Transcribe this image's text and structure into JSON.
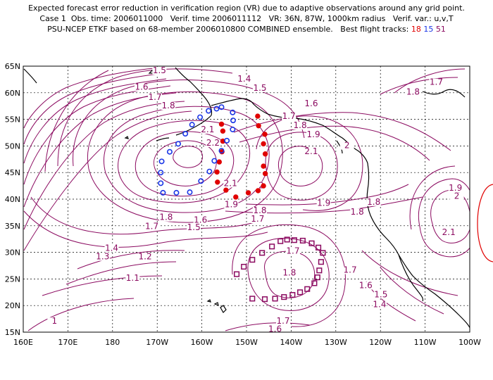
{
  "title": {
    "line1": "Expected forecast error reduction in verification region (VR) due to adaptive observations around any grid point.",
    "line2": "Case 1  Obs. time: 2006011000   Verif. time 2006011112   VR: 36N, 87W, 1000km radius   Verif. var.: u,v,T",
    "line3_prefix": "PSU-NCEP ETKF based on 68-member 2006010800 COMBINED ensemble.   Best flight tracks: ",
    "track1": "18",
    "track2": "15",
    "track3": "51"
  },
  "axes": {
    "x_ticks": [
      "160E",
      "170E",
      "180",
      "170W",
      "160W",
      "150W",
      "140W",
      "130W",
      "120W",
      "110W",
      "100W"
    ],
    "y_ticks": [
      "15N",
      "20N",
      "25N",
      "30N",
      "35N",
      "40N",
      "45N",
      "50N",
      "55N",
      "60N",
      "65N"
    ]
  },
  "contour_labels": [
    {
      "text": "1.5",
      "lon": -169.5,
      "lat": 63.8
    },
    {
      "text": "1.4",
      "lon": -150.5,
      "lat": 62.2
    },
    {
      "text": "1.5",
      "lon": -147,
      "lat": 60.5
    },
    {
      "text": "1.6",
      "lon": -173.5,
      "lat": 60.7
    },
    {
      "text": "1.7",
      "lon": -170.5,
      "lat": 58.8
    },
    {
      "text": "1.8",
      "lon": -167.5,
      "lat": 57.2
    },
    {
      "text": "1.6",
      "lon": -135.5,
      "lat": 57.6
    },
    {
      "text": "1.7",
      "lon": -140.5,
      "lat": 55.2
    },
    {
      "text": "1.8",
      "lon": -138,
      "lat": 53.5
    },
    {
      "text": "1.9",
      "lon": -135,
      "lat": 51.8
    },
    {
      "text": "2",
      "lon": -127.5,
      "lat": 49.7
    },
    {
      "text": "2.1",
      "lon": -135.5,
      "lat": 48.6
    },
    {
      "text": "2.1",
      "lon": -158.7,
      "lat": 52.7
    },
    {
      "text": "2.2",
      "lon": -157.5,
      "lat": 50.2
    },
    {
      "text": "2.1",
      "lon": -153.6,
      "lat": 42.6
    },
    {
      "text": "2",
      "lon": -146.7,
      "lat": 42.2
    },
    {
      "text": "1.9",
      "lon": -153.4,
      "lat": 38.6
    },
    {
      "text": "1.9",
      "lon": -132.7,
      "lat": 38.9
    },
    {
      "text": "1.8",
      "lon": -147,
      "lat": 37.5
    },
    {
      "text": "1.7",
      "lon": -147.5,
      "lat": 35.9
    },
    {
      "text": "1.8",
      "lon": -168,
      "lat": 36.2
    },
    {
      "text": "1.7",
      "lon": -171.2,
      "lat": 34.5
    },
    {
      "text": "1.6",
      "lon": -160.3,
      "lat": 35.7
    },
    {
      "text": "1.5",
      "lon": -161.8,
      "lat": 34.3
    },
    {
      "text": "1.8",
      "lon": -121.5,
      "lat": 39.1
    },
    {
      "text": "1.8",
      "lon": -125.2,
      "lat": 37.2
    },
    {
      "text": "1.9",
      "lon": -103.2,
      "lat": 41.7
    },
    {
      "text": "2",
      "lon": -102.9,
      "lat": 40.2
    },
    {
      "text": "2.1",
      "lon": -104.7,
      "lat": 33.4
    },
    {
      "text": "1.7",
      "lon": -107.5,
      "lat": 61.6
    },
    {
      "text": "1.8",
      "lon": -112.7,
      "lat": 59.8
    },
    {
      "text": "1.4",
      "lon": -180.2,
      "lat": 30.4
    },
    {
      "text": "1.3",
      "lon": -182.2,
      "lat": 28.8
    },
    {
      "text": "1.2",
      "lon": -172.7,
      "lat": 28.8
    },
    {
      "text": "1.1",
      "lon": -175.5,
      "lat": 24.8
    },
    {
      "text": "1",
      "lon": -193,
      "lat": 16.7
    },
    {
      "text": "1.7",
      "lon": -139.6,
      "lat": 29.9
    },
    {
      "text": "1.8",
      "lon": -140.4,
      "lat": 25.8
    },
    {
      "text": "1.7",
      "lon": -126.8,
      "lat": 26.3
    },
    {
      "text": "1.6",
      "lon": -123.3,
      "lat": 23.4
    },
    {
      "text": "1.5",
      "lon": -119.9,
      "lat": 21.7
    },
    {
      "text": "1.4",
      "lon": -120.2,
      "lat": 19.8
    },
    {
      "text": "1.7",
      "lon": -141.8,
      "lat": 16.7
    },
    {
      "text": "1.6",
      "lon": -143.6,
      "lat": 15.2
    }
  ],
  "tracks": [
    {
      "name": "18",
      "color": "#e00000",
      "marker": "filled-circle",
      "points": [
        [
          -152.4,
          40.4
        ],
        [
          -149.6,
          41.2
        ],
        [
          -147.4,
          41.6
        ],
        [
          -146.2,
          42.5
        ],
        [
          -145.8,
          44.8
        ],
        [
          -146.2,
          46.2
        ],
        [
          -145.8,
          48.5
        ],
        [
          -146.2,
          50.4
        ],
        [
          -145.9,
          52.2
        ],
        [
          -147.3,
          53.8
        ],
        [
          -147.5,
          55.6
        ],
        [
          -154.6,
          41.7
        ],
        [
          -156.5,
          43.2
        ],
        [
          -156.6,
          45.1
        ],
        [
          -156.1,
          47
        ],
        [
          -155.5,
          48.9
        ],
        [
          -155.3,
          50.9
        ],
        [
          -155.3,
          52.8
        ],
        [
          -155.6,
          54.1
        ]
      ]
    },
    {
      "name": "15",
      "color": "#1a36e6",
      "marker": "open-circle",
      "points": [
        [
          -168.7,
          41.2
        ],
        [
          -165.7,
          41.2
        ],
        [
          -162.7,
          41.3
        ],
        [
          -169.2,
          43
        ],
        [
          -169.2,
          45
        ],
        [
          -169,
          47.1
        ],
        [
          -167.2,
          48.9
        ],
        [
          -165.3,
          50.4
        ],
        [
          -163.7,
          52.3
        ],
        [
          -162.2,
          54
        ],
        [
          -160.4,
          55.4
        ],
        [
          -158.5,
          56.6
        ],
        [
          -156.7,
          57
        ],
        [
          -160.2,
          43.4
        ],
        [
          -158.3,
          45.2
        ],
        [
          -157.2,
          47.2
        ],
        [
          -155.6,
          49.1
        ],
        [
          -154.4,
          51
        ],
        [
          -153.1,
          53.1
        ],
        [
          -153,
          54.8
        ],
        [
          -153.1,
          56.3
        ],
        [
          -155.6,
          57.3
        ]
      ]
    },
    {
      "name": "51",
      "color": "#8b0a60",
      "marker": "open-square",
      "points": [
        [
          -152.2,
          25.9
        ],
        [
          -150.6,
          27.3
        ],
        [
          -148.7,
          28.6
        ],
        [
          -146.5,
          29.9
        ],
        [
          -144.3,
          31.1
        ],
        [
          -142.4,
          32.1
        ],
        [
          -140.9,
          32.4
        ],
        [
          -139.3,
          32.3
        ],
        [
          -137.4,
          32.2
        ],
        [
          -135.4,
          31.7
        ],
        [
          -133.9,
          30.9
        ],
        [
          -132.9,
          29.9
        ],
        [
          -133.3,
          28.2
        ],
        [
          -133.7,
          26.6
        ],
        [
          -134.1,
          25.3
        ],
        [
          -134.8,
          24.2
        ],
        [
          -136.4,
          23.1
        ],
        [
          -138,
          22.5
        ],
        [
          -139.7,
          22
        ],
        [
          -141.6,
          21.6
        ],
        [
          -143.6,
          21.3
        ],
        [
          -145.9,
          21.2
        ],
        [
          -148.7,
          21.3
        ]
      ]
    }
  ],
  "colors": {
    "contour": "#8b0a60",
    "coast": "#000000",
    "grid": "#000000",
    "vr_circle": "#e00000"
  }
}
